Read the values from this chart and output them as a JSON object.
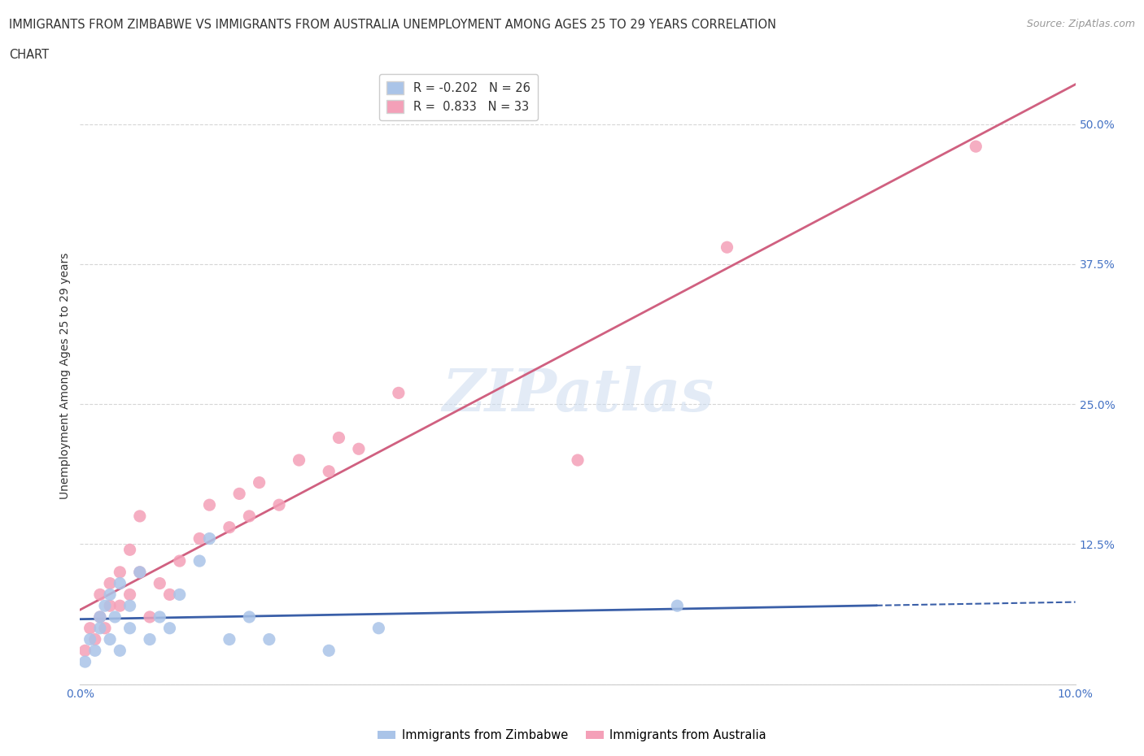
{
  "title_line1": "IMMIGRANTS FROM ZIMBABWE VS IMMIGRANTS FROM AUSTRALIA UNEMPLOYMENT AMONG AGES 25 TO 29 YEARS CORRELATION",
  "title_line2": "CHART",
  "source": "Source: ZipAtlas.com",
  "ylabel": "Unemployment Among Ages 25 to 29 years",
  "watermark": "ZIPatlas",
  "xlim": [
    0.0,
    0.1
  ],
  "ylim": [
    0.0,
    0.55
  ],
  "xticks": [
    0.0,
    0.02,
    0.04,
    0.06,
    0.08,
    0.1
  ],
  "xticklabels": [
    "0.0%",
    "",
    "",
    "",
    "",
    "10.0%"
  ],
  "yticks": [
    0.0,
    0.125,
    0.25,
    0.375,
    0.5
  ],
  "yticklabels": [
    "",
    "12.5%",
    "25.0%",
    "37.5%",
    "50.0%"
  ],
  "grid_color": "#cccccc",
  "background_color": "#ffffff",
  "title_color": "#333333",
  "axis_color": "#4472c4",
  "zimbabwe_x": [
    0.0005,
    0.001,
    0.0015,
    0.002,
    0.002,
    0.0025,
    0.003,
    0.003,
    0.0035,
    0.004,
    0.004,
    0.005,
    0.005,
    0.006,
    0.007,
    0.008,
    0.009,
    0.01,
    0.012,
    0.013,
    0.015,
    0.017,
    0.019,
    0.025,
    0.03,
    0.06
  ],
  "zimbabwe_y": [
    0.02,
    0.04,
    0.03,
    0.06,
    0.05,
    0.07,
    0.04,
    0.08,
    0.06,
    0.03,
    0.09,
    0.05,
    0.07,
    0.1,
    0.04,
    0.06,
    0.05,
    0.08,
    0.11,
    0.13,
    0.04,
    0.06,
    0.04,
    0.03,
    0.05,
    0.07
  ],
  "australia_x": [
    0.0005,
    0.001,
    0.0015,
    0.002,
    0.002,
    0.0025,
    0.003,
    0.003,
    0.004,
    0.004,
    0.005,
    0.005,
    0.006,
    0.006,
    0.007,
    0.008,
    0.009,
    0.01,
    0.012,
    0.013,
    0.015,
    0.016,
    0.017,
    0.018,
    0.02,
    0.022,
    0.025,
    0.026,
    0.028,
    0.032,
    0.05,
    0.065,
    0.09
  ],
  "australia_y": [
    0.03,
    0.05,
    0.04,
    0.06,
    0.08,
    0.05,
    0.07,
    0.09,
    0.07,
    0.1,
    0.08,
    0.12,
    0.1,
    0.15,
    0.06,
    0.09,
    0.08,
    0.11,
    0.13,
    0.16,
    0.14,
    0.17,
    0.15,
    0.18,
    0.16,
    0.2,
    0.19,
    0.22,
    0.21,
    0.26,
    0.2,
    0.39,
    0.48
  ],
  "zim_R": -0.202,
  "zim_N": 26,
  "aus_R": 0.833,
  "aus_N": 33,
  "zim_line_color": "#3a5fa8",
  "aus_line_color": "#d06080",
  "zim_scatter_color": "#aac4e8",
  "aus_scatter_color": "#f4a0b8",
  "bottom_legend": [
    "Immigrants from Zimbabwe",
    "Immigrants from Australia"
  ]
}
